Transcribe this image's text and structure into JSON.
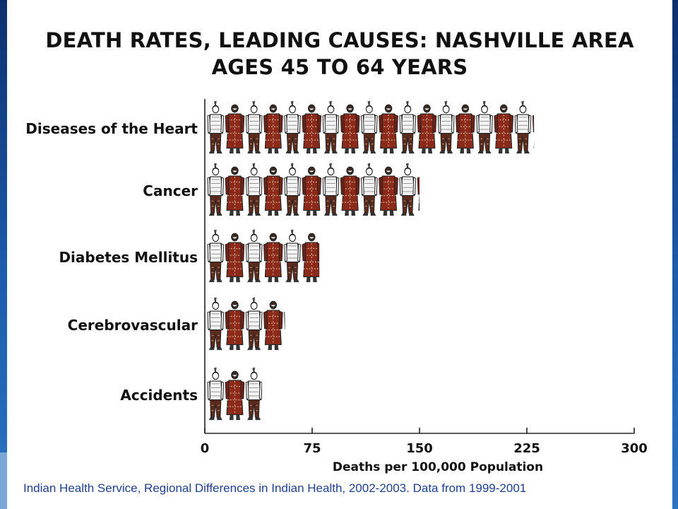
{
  "title": {
    "line1": "DEATH RATES, LEADING CAUSES: NASHVILLE AREA",
    "line2": "AGES 45 TO 64 YEARS"
  },
  "source": "Indian Health Service, Regional Differences in Indian Health, 2002-2003. Data from 1999-2001",
  "chart_data": {
    "type": "bar",
    "orientation": "horizontal",
    "categories": [
      "Diseases of the Heart",
      "Cancer",
      "Diabetes Mellitus",
      "Cerebrovascular",
      "Accidents"
    ],
    "values": [
      230,
      150,
      80,
      56,
      40
    ],
    "xlabel": "Deaths per 100,000 Population",
    "xticks": [
      0,
      75,
      150,
      225,
      300
    ],
    "xlim": [
      0,
      300
    ],
    "grid": false,
    "legend": "none",
    "mark_style": "pictograph",
    "colors": {
      "figure_light": "#f2f2f2",
      "figure_robe": "#8b2a1a",
      "outline": "#222222"
    }
  }
}
